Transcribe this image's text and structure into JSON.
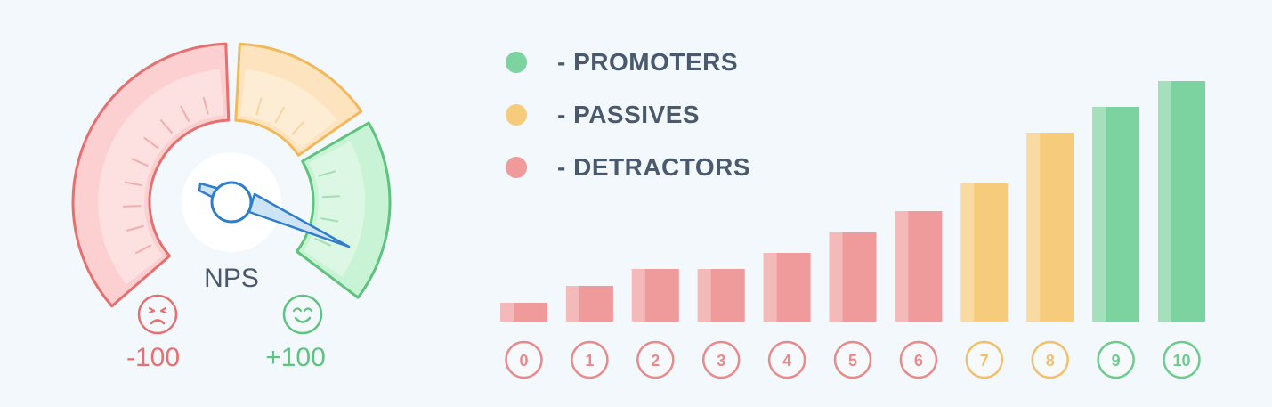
{
  "gauge": {
    "label": "NPS",
    "min_label": "-100",
    "max_label": "+100",
    "min_icon": "sad-face-icon",
    "max_icon": "happy-face-icon",
    "segments": [
      {
        "name": "detractors",
        "color": "#e6706f",
        "fill": "#fccfd0"
      },
      {
        "name": "passives",
        "color": "#f2b95c",
        "fill": "#fde4bf"
      },
      {
        "name": "promoters",
        "color": "#5fc27e",
        "fill": "#c9f3d5"
      }
    ],
    "needle_color": "#2f7ecb"
  },
  "legend": [
    {
      "label": "- PROMOTERS",
      "color": "#7dd3a0"
    },
    {
      "label": "- PASSIVES",
      "color": "#f7cb7c"
    },
    {
      "label": "- DETRACTORS",
      "color": "#ef9b9b"
    }
  ],
  "chart_data": {
    "type": "bar",
    "categories": [
      "0",
      "1",
      "2",
      "3",
      "4",
      "5",
      "6",
      "7",
      "8",
      "9",
      "10"
    ],
    "values": [
      21,
      40,
      59,
      59,
      77,
      100,
      124,
      155,
      212,
      241,
      270
    ],
    "bar_colors": [
      "#ef9b9b",
      "#ef9b9b",
      "#ef9b9b",
      "#ef9b9b",
      "#ef9b9b",
      "#ef9b9b",
      "#ef9b9b",
      "#f7cb7c",
      "#f7cb7c",
      "#7dd3a0",
      "#7dd3a0"
    ],
    "label_colors": [
      "#e98a8a",
      "#e98a8a",
      "#e98a8a",
      "#e98a8a",
      "#e98a8a",
      "#e98a8a",
      "#e98a8a",
      "#f2bf6a",
      "#f2bf6a",
      "#6fcb8c",
      "#6fcb8c"
    ],
    "ylim": [
      0,
      280
    ],
    "grid": false,
    "legend_position": "top-left"
  }
}
